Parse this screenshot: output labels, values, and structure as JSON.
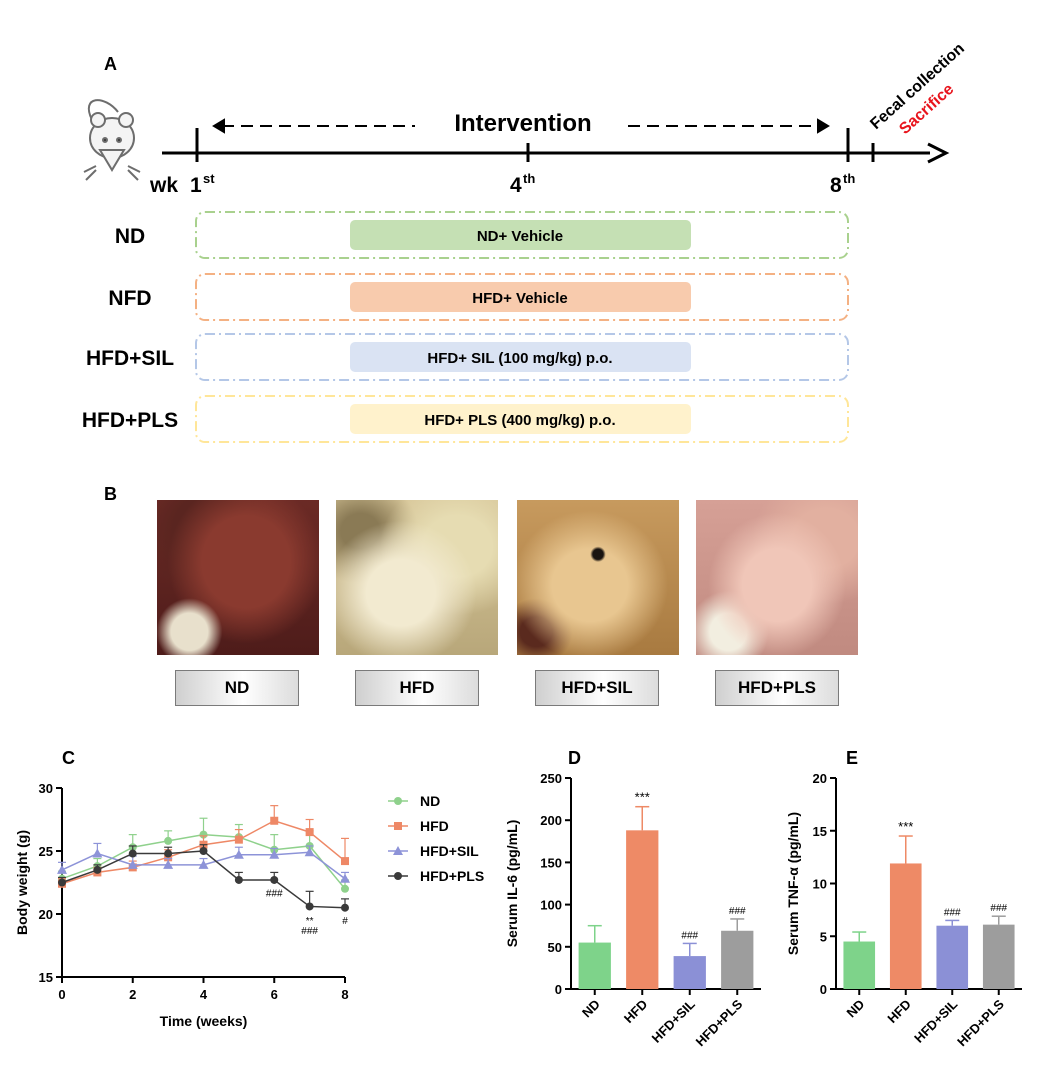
{
  "panelA": {
    "label": "A",
    "week_prefix": "wk",
    "week1": "1",
    "week1_sup": "st",
    "week4": "4",
    "week4_sup": "th",
    "week8": "8",
    "week8_sup": "th",
    "intervention": "Intervention",
    "fecal": "Fecal collection",
    "sacrifice": "Sacrifice",
    "sacrifice_color": "#e8141c",
    "groups": [
      {
        "name": "ND",
        "treatment": "ND+ Vehicle",
        "fill": "#c5e0b4",
        "dash": "#a9d18e"
      },
      {
        "name": "NFD",
        "treatment": "HFD+ Vehicle",
        "fill": "#f8cbad",
        "dash": "#f4b183"
      },
      {
        "name": "HFD+SIL",
        "treatment": "HFD+ SIL (100 mg/kg) p.o.",
        "fill": "#dae3f3",
        "dash": "#b4c7e7"
      },
      {
        "name": "HFD+PLS",
        "treatment": "HFD+ PLS (400 mg/kg) p.o.",
        "fill": "#fff2cc",
        "dash": "#ffe699"
      }
    ]
  },
  "panelB": {
    "label": "B",
    "groups": [
      "ND",
      "HFD",
      "HFD+SIL",
      "HFD+PLS"
    ]
  },
  "chart_data": [
    {
      "panel": "C",
      "type": "line",
      "xlabel": "Time (weeks)",
      "ylabel": "Body weight (g)",
      "x": [
        0,
        1,
        2,
        3,
        4,
        5,
        6,
        7,
        8
      ],
      "xticks": [
        0,
        2,
        4,
        6,
        8
      ],
      "yticks": [
        15,
        20,
        25,
        30
      ],
      "xlim": [
        0,
        8
      ],
      "ylim": [
        15,
        30
      ],
      "legend_position": "right",
      "series": [
        {
          "name": "ND",
          "color": "#8fd18c",
          "marker": "circle",
          "values": [
            22.8,
            23.8,
            25.3,
            25.8,
            26.3,
            26.1,
            25.1,
            25.4,
            22.0
          ],
          "errors": [
            0.6,
            0.6,
            1.0,
            0.8,
            1.3,
            1.0,
            1.2,
            1.2,
            0.7
          ]
        },
        {
          "name": "HFD",
          "color": "#ee8866",
          "marker": "square",
          "values": [
            22.4,
            23.3,
            23.7,
            24.5,
            25.5,
            25.9,
            27.4,
            26.5,
            24.2
          ],
          "errors": [
            0.4,
            0.4,
            0.5,
            0.6,
            0.7,
            0.8,
            1.2,
            1.0,
            1.8
          ]
        },
        {
          "name": "HFD+SIL",
          "color": "#8d93d8",
          "marker": "triangle",
          "values": [
            23.5,
            24.8,
            23.9,
            23.9,
            23.9,
            24.7,
            24.7,
            24.9,
            22.8
          ],
          "errors": [
            0.6,
            0.8,
            0.7,
            0.5,
            0.5,
            0.6,
            0.5,
            0.5,
            0.5
          ]
        },
        {
          "name": "HFD+PLS",
          "color": "#3a3a3a",
          "marker": "circle",
          "values": [
            22.5,
            23.5,
            24.8,
            24.8,
            25.0,
            22.7,
            22.7,
            20.6,
            20.5
          ],
          "errors": [
            0.4,
            0.4,
            0.6,
            0.5,
            0.5,
            0.6,
            0.6,
            1.2,
            0.7
          ]
        }
      ],
      "annotations": [
        {
          "x": 6,
          "y": 21.4,
          "text": "###"
        },
        {
          "x": 7,
          "y": 19.2,
          "text": "**"
        },
        {
          "x": 7,
          "y": 18.4,
          "text": "###"
        },
        {
          "x": 8,
          "y": 19.2,
          "text": "#"
        }
      ]
    },
    {
      "panel": "D",
      "type": "bar",
      "ylabel": "Serum IL-6 (pg/mL)",
      "categories": [
        "ND",
        "HFD",
        "HFD+SIL",
        "HFD+PLS"
      ],
      "values": [
        55,
        188,
        39,
        69
      ],
      "errors": [
        20,
        28,
        15,
        14
      ],
      "colors": [
        "#7ed38a",
        "#ee8a66",
        "#8b90d6",
        "#9d9d9d"
      ],
      "annotations": [
        "",
        "***",
        "###",
        "###"
      ],
      "yticks": [
        0,
        50,
        100,
        150,
        200,
        250
      ],
      "ylim": [
        0,
        250
      ]
    },
    {
      "panel": "E",
      "type": "bar",
      "ylabel": "Serum TNF-α (pg/mL)",
      "categories": [
        "ND",
        "HFD",
        "HFD+SIL",
        "HFD+PLS"
      ],
      "values": [
        4.5,
        11.9,
        6.0,
        6.1
      ],
      "errors": [
        0.9,
        2.6,
        0.5,
        0.8
      ],
      "colors": [
        "#7ed38a",
        "#ee8a66",
        "#8b90d6",
        "#9d9d9d"
      ],
      "annotations": [
        "",
        "***",
        "###",
        "###"
      ],
      "yticks": [
        0,
        5,
        10,
        15,
        20
      ],
      "ylim": [
        0,
        20
      ]
    }
  ]
}
